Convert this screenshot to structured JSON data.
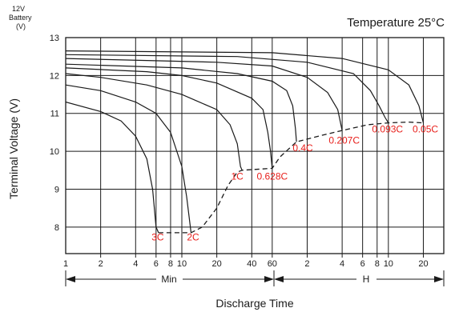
{
  "chart_data": {
    "type": "line",
    "title": "Temperature 25°C",
    "corner_label": [
      "12V",
      "Battery",
      "(V)"
    ],
    "ylabel": "Terminal Voltage (V)",
    "xlabel": "Discharge Time",
    "x_unit_min": "Min",
    "x_unit_hour": "H",
    "x_scale": "log",
    "ylim": [
      7.3,
      13
    ],
    "y_ticks": [
      "13",
      "12",
      "11",
      "10",
      "9",
      "8"
    ],
    "x_ticks_min": [
      "1",
      "2",
      "4",
      "6",
      "8",
      "10",
      "20",
      "40",
      "60"
    ],
    "x_ticks_hour": [
      "2",
      "4",
      "6",
      "8",
      "10",
      "20"
    ],
    "grid": true,
    "series": [
      {
        "label": "3C",
        "color": "#1a1a1a",
        "points": [
          [
            1,
            11.3
          ],
          [
            2,
            11.05
          ],
          [
            3,
            10.8
          ],
          [
            4,
            10.4
          ],
          [
            5,
            9.8
          ],
          [
            5.6,
            9.0
          ],
          [
            6,
            8.0
          ],
          [
            6.3,
            7.85
          ]
        ]
      },
      {
        "label": "2C",
        "color": "#1a1a1a",
        "points": [
          [
            1,
            11.75
          ],
          [
            2,
            11.6
          ],
          [
            4,
            11.3
          ],
          [
            6,
            11.0
          ],
          [
            8,
            10.5
          ],
          [
            10,
            9.6
          ],
          [
            11,
            8.8
          ],
          [
            12,
            7.85
          ]
        ]
      },
      {
        "label": "1C",
        "color": "#1a1a1a",
        "points": [
          [
            1,
            12.05
          ],
          [
            2,
            11.95
          ],
          [
            5,
            11.75
          ],
          [
            10,
            11.5
          ],
          [
            20,
            11.1
          ],
          [
            26,
            10.7
          ],
          [
            30,
            10.2
          ],
          [
            32,
            9.6
          ],
          [
            33,
            9.5
          ]
        ]
      },
      {
        "label": "0.628C",
        "color": "#1a1a1a",
        "points": [
          [
            1,
            12.2
          ],
          [
            5,
            12.1
          ],
          [
            10,
            12.0
          ],
          [
            20,
            11.8
          ],
          [
            40,
            11.4
          ],
          [
            50,
            11.1
          ],
          [
            55,
            10.5
          ],
          [
            58,
            10.0
          ],
          [
            60,
            9.55
          ]
        ]
      },
      {
        "label": "0.4C",
        "color": "#1a1a1a",
        "points": [
          [
            1,
            12.3
          ],
          [
            10,
            12.2
          ],
          [
            30,
            12.05
          ],
          [
            60,
            11.85
          ],
          [
            80,
            11.6
          ],
          [
            90,
            11.2
          ],
          [
            95,
            10.6
          ],
          [
            97,
            10.25
          ]
        ]
      },
      {
        "label": "0.207C",
        "color": "#1a1a1a",
        "points": [
          [
            1,
            12.45
          ],
          [
            20,
            12.35
          ],
          [
            60,
            12.25
          ],
          [
            120,
            11.95
          ],
          [
            180,
            11.55
          ],
          [
            220,
            11.1
          ],
          [
            240,
            10.55
          ]
        ]
      },
      {
        "label": "0.093C",
        "color": "#1a1a1a",
        "points": [
          [
            1,
            12.55
          ],
          [
            30,
            12.5
          ],
          [
            120,
            12.35
          ],
          [
            300,
            12.05
          ],
          [
            420,
            11.6
          ],
          [
            500,
            11.2
          ],
          [
            560,
            10.9
          ],
          [
            600,
            10.75
          ]
        ]
      },
      {
        "label": "0.05C",
        "color": "#1a1a1a",
        "points": [
          [
            1,
            12.65
          ],
          [
            60,
            12.6
          ],
          [
            240,
            12.45
          ],
          [
            600,
            12.15
          ],
          [
            900,
            11.75
          ],
          [
            1100,
            11.2
          ],
          [
            1200,
            10.75
          ]
        ]
      }
    ],
    "cutoff_line": {
      "style": "dashed",
      "points": [
        [
          6.3,
          7.85
        ],
        [
          12,
          7.85
        ],
        [
          15,
          8.0
        ],
        [
          20,
          8.5
        ],
        [
          25,
          9.1
        ],
        [
          30,
          9.45
        ],
        [
          33,
          9.5
        ],
        [
          60,
          9.55
        ],
        [
          70,
          9.85
        ],
        [
          97,
          10.25
        ],
        [
          150,
          10.4
        ],
        [
          240,
          10.55
        ],
        [
          400,
          10.7
        ],
        [
          600,
          10.75
        ],
        [
          900,
          10.77
        ],
        [
          1200,
          10.75
        ]
      ]
    },
    "annotations": [
      {
        "text": "3C",
        "x": 6.2,
        "y": 7.65
      },
      {
        "text": "2C",
        "x": 12.5,
        "y": 7.65
      },
      {
        "text": "1C",
        "x": 30,
        "y": 9.25
      },
      {
        "text": "0.628C",
        "x": 60,
        "y": 9.25
      },
      {
        "text": "0.4C",
        "x": 110,
        "y": 10.0
      },
      {
        "text": "0.207C",
        "x": 250,
        "y": 10.2
      },
      {
        "text": "0.093C",
        "x": 590,
        "y": 10.5
      },
      {
        "text": "0.05C",
        "x": 1250,
        "y": 10.5
      }
    ]
  }
}
